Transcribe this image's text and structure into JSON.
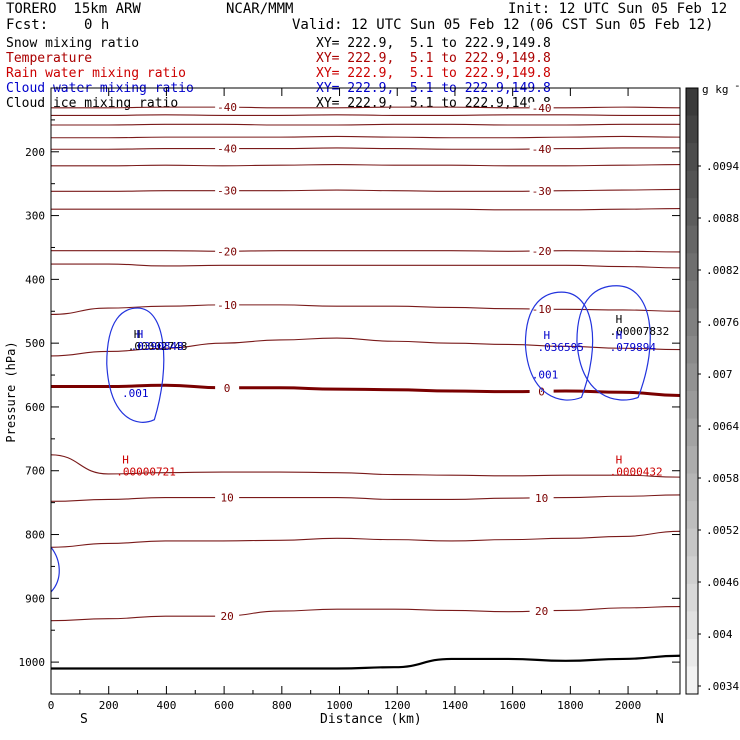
{
  "header": {
    "model": "TORERO  15km ARW",
    "center": "NCAR/MMM",
    "init": "Init: 12 UTC Sun 05 Feb 12",
    "fcst_label": "Fcst:",
    "fcst_value": "0 h",
    "valid": "Valid: 12 UTC Sun 05 Feb 12 (06 CST Sun 05 Feb 12)"
  },
  "fields": [
    {
      "name": "Snow mixing ratio",
      "xy": "XY= 222.9,  5.1 to 222.9,149.8",
      "color": "#000000"
    },
    {
      "name": "Temperature",
      "xy": "XY= 222.9,  5.1 to 222.9,149.8",
      "color": "#aa0000"
    },
    {
      "name": "Rain water mixing ratio",
      "xy": "XY= 222.9,  5.1 to 222.9,149.8",
      "color": "#cc0000"
    },
    {
      "name": "Cloud water mixing ratio",
      "xy": "XY= 222.9,  5.1 to 222.9,149.8",
      "color": "#0000cc"
    },
    {
      "name": "Cloud ice mixing ratio",
      "xy": "XY= 222.9,  5.1 to 222.9,149.8",
      "color": "#000000"
    }
  ],
  "chart_data": {
    "type": "contour-cross-section",
    "xlabel": "Distance (km)",
    "ylabel": "Pressure (hPa)",
    "xlim": [
      0,
      2180
    ],
    "ylim": [
      1050,
      100
    ],
    "x_ticks": [
      0,
      200,
      400,
      600,
      800,
      1000,
      1200,
      1400,
      1600,
      1800,
      2000
    ],
    "y_ticks": [
      200,
      300,
      400,
      500,
      600,
      700,
      800,
      900,
      1000
    ],
    "endpoints": {
      "left": "S",
      "right": "N"
    },
    "colorbar": {
      "unit_label": "g kg",
      "unit_exp": "-1",
      "labels": [
        ".0094",
        ".0088",
        ".0082",
        ".0076",
        ".007",
        ".0064",
        ".0058",
        ".0052",
        ".0046",
        ".004",
        ".0034"
      ],
      "top_color": "#3a3a3a",
      "bottom_color": "#f2f2f2"
    },
    "temperature_contours": [
      {
        "label": "-40",
        "pressure": [
          131,
          131,
          130,
          130,
          131,
          131,
          130,
          130,
          131,
          131,
          130,
          131
        ]
      },
      {
        "label": "",
        "pressure": [
          143,
          143,
          142,
          143,
          143,
          142,
          143,
          143,
          142,
          142,
          143,
          143
        ]
      },
      {
        "label": "",
        "pressure": [
          158,
          158,
          157,
          157,
          158,
          158,
          157,
          157,
          158,
          158,
          157,
          157
        ]
      },
      {
        "label": "",
        "pressure": [
          178,
          178,
          177,
          177,
          177,
          176,
          177,
          178,
          178,
          177,
          176,
          177
        ]
      },
      {
        "label": "-40",
        "pressure": [
          196,
          196,
          195,
          195,
          195,
          194,
          195,
          196,
          196,
          195,
          194,
          194
        ]
      },
      {
        "label": "",
        "pressure": [
          222,
          222,
          221,
          222,
          221,
          220,
          221,
          221,
          222,
          222,
          221,
          220
        ]
      },
      {
        "label": "-30",
        "pressure": [
          262,
          262,
          261,
          261,
          261,
          260,
          261,
          262,
          262,
          261,
          260,
          259
        ]
      },
      {
        "label": "",
        "pressure": [
          290,
          290,
          290,
          290,
          290,
          290,
          290,
          290,
          291,
          291,
          290,
          289
        ]
      },
      {
        "label": "-20",
        "pressure": [
          355,
          355,
          355,
          356,
          355,
          355,
          355,
          355,
          356,
          355,
          356,
          357
        ]
      },
      {
        "label": "",
        "pressure": [
          376,
          376,
          379,
          378,
          378,
          378,
          378,
          378,
          378,
          378,
          380,
          382
        ]
      },
      {
        "label": "-10",
        "pressure": [
          455,
          445,
          442,
          440,
          440,
          442,
          442,
          444,
          446,
          447,
          448,
          450
        ]
      },
      {
        "label": "",
        "pressure": [
          520,
          513,
          508,
          500,
          495,
          492,
          497,
          500,
          502,
          505,
          508,
          510
        ]
      },
      {
        "label": "0",
        "pressure": [
          568,
          568,
          566,
          570,
          570,
          572,
          573,
          575,
          576,
          575,
          577,
          582
        ]
      },
      {
        "label": "",
        "pressure": [
          675,
          705,
          703,
          702,
          702,
          703,
          706,
          707,
          708,
          707,
          707,
          710
        ]
      },
      {
        "label": "10",
        "pressure": [
          748,
          745,
          742,
          742,
          742,
          742,
          745,
          745,
          743,
          742,
          740,
          738
        ]
      },
      {
        "label": "",
        "pressure": [
          820,
          814,
          810,
          810,
          809,
          806,
          808,
          810,
          808,
          806,
          803,
          795
        ]
      },
      {
        "label": "20",
        "pressure": [
          935,
          932,
          928,
          928,
          920,
          917,
          917,
          919,
          921,
          919,
          915,
          913
        ]
      },
      {
        "label": "",
        "pressure": [
          1010,
          1010,
          1010,
          1010,
          1010,
          1010,
          1008,
          995,
          995,
          998,
          995,
          990
        ]
      }
    ],
    "highs": [
      {
        "field": "Cloud ice mixing ratio",
        "symbol": "H",
        "value": ".00002748",
        "x": 280,
        "p": 498
      },
      {
        "field": "Cloud water mixing ratio",
        "symbol": "H",
        "value": ".0390848",
        "x": 290,
        "p": 498
      },
      {
        "field": "Cloud water mixing ratio",
        "symbol": "",
        "value": ".001",
        "x": 260,
        "p": 572
      },
      {
        "field": "Cloud water mixing ratio",
        "symbol": "H",
        "value": ".036595",
        "x": 1700,
        "p": 500
      },
      {
        "field": "Cloud water mixing ratio",
        "symbol": "",
        "value": ".001",
        "x": 1680,
        "p": 543
      },
      {
        "field": "Cloud ice mixing ratio",
        "symbol": "H",
        "value": ".00007832",
        "x": 1950,
        "p": 475
      },
      {
        "field": "Cloud water mixing ratio",
        "symbol": "H",
        "value": ".079894",
        "x": 1950,
        "p": 500
      },
      {
        "field": "Rain water mixing ratio",
        "symbol": "H",
        "value": ".00000721",
        "x": 240,
        "p": 695
      },
      {
        "field": "Rain water mixing ratio",
        "symbol": "H",
        "value": ".0000432",
        "x": 1950,
        "p": 695
      }
    ]
  }
}
